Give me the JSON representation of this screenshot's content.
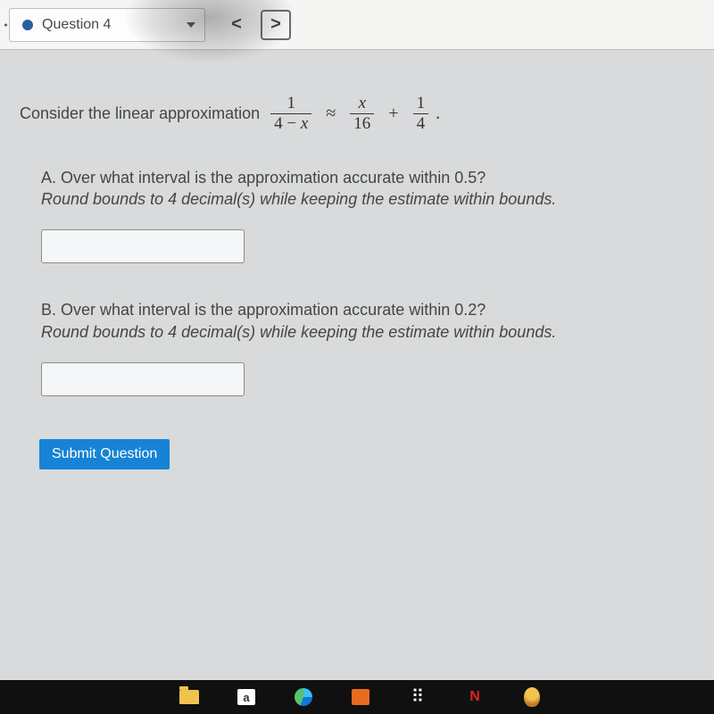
{
  "topbar": {
    "question_label": "Question 4",
    "status_dot_color": "#2a5fa1",
    "prev_symbol": "<",
    "next_symbol": ">"
  },
  "problem": {
    "intro_text": "Consider the linear approximation",
    "lhs": {
      "num": "1",
      "den_pre": "4 −",
      "den_var": "x"
    },
    "approx": "≈",
    "t1": {
      "num_var": "x",
      "den": "16"
    },
    "plus": "+",
    "t2": {
      "num": "1",
      "den": "4"
    },
    "tail": "."
  },
  "partA": {
    "letter": "A.",
    "question": "Over what interval is the approximation accurate within 0.5?",
    "hint": "Round bounds to 4 decimal(s) while keeping the estimate within bounds."
  },
  "partB": {
    "letter": "B.",
    "question": "Over what interval is the approximation accurate within 0.2?",
    "hint": "Round bounds to 4 decimal(s) while keeping the estimate within bounds."
  },
  "submit_label": "Submit Question",
  "taskbar": {
    "shop_letter": "a",
    "dropbox_glyph": "⠿",
    "netflix_letter": "N"
  },
  "colors": {
    "page_bg": "#d8dadb",
    "submit_bg": "#1683d6"
  }
}
